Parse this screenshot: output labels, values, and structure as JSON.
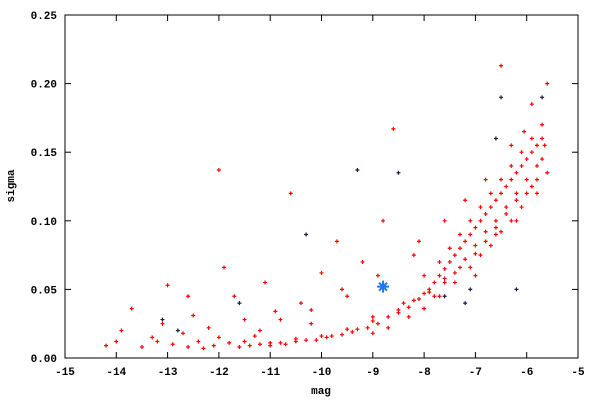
{
  "chart_data": {
    "type": "scatter",
    "title": "",
    "xlabel": "mag",
    "ylabel": "sigma",
    "xlim": [
      -15,
      -5
    ],
    "ylim": [
      0,
      0.25
    ],
    "xticks": [
      "-15",
      "-14",
      "-13",
      "-12",
      "-11",
      "-10",
      "-9",
      "-8",
      "-7",
      "-6",
      "-5"
    ],
    "yticks": [
      "0.00",
      "0.05",
      "0.10",
      "0.15",
      "0.20",
      "0.25"
    ],
    "grid": false,
    "legend": "none",
    "series": [
      {
        "color": "#ff0000",
        "marker": "plus",
        "points": [
          [
            -14.2,
            0.009
          ],
          [
            -14.0,
            0.012
          ],
          [
            -13.9,
            0.02
          ],
          [
            -13.7,
            0.036
          ],
          [
            -13.5,
            0.008
          ],
          [
            -13.3,
            0.015
          ],
          [
            -13.1,
            0.025
          ],
          [
            -13.0,
            0.053
          ],
          [
            -12.9,
            0.01
          ],
          [
            -12.7,
            0.018
          ],
          [
            -12.6,
            0.008
          ],
          [
            -12.5,
            0.031
          ],
          [
            -12.4,
            0.012
          ],
          [
            -12.3,
            0.007
          ],
          [
            -12.2,
            0.022
          ],
          [
            -12.1,
            0.009
          ],
          [
            -12.0,
            0.137
          ],
          [
            -11.9,
            0.066
          ],
          [
            -11.8,
            0.011
          ],
          [
            -11.7,
            0.045
          ],
          [
            -11.6,
            0.008
          ],
          [
            -11.5,
            0.028
          ],
          [
            -11.4,
            0.009
          ],
          [
            -11.3,
            0.016
          ],
          [
            -11.2,
            0.01
          ],
          [
            -11.1,
            0.055
          ],
          [
            -11.0,
            0.009
          ],
          [
            -10.9,
            0.034
          ],
          [
            -10.8,
            0.011
          ],
          [
            -10.7,
            0.01
          ],
          [
            -10.6,
            0.12
          ],
          [
            -10.5,
            0.012
          ],
          [
            -10.4,
            0.04
          ],
          [
            -10.3,
            0.013
          ],
          [
            -10.2,
            0.025
          ],
          [
            -10.1,
            0.013
          ],
          [
            -10.0,
            0.062
          ],
          [
            -9.9,
            0.015
          ],
          [
            -9.8,
            0.016
          ],
          [
            -9.7,
            0.085
          ],
          [
            -9.6,
            0.017
          ],
          [
            -9.5,
            0.045
          ],
          [
            -9.4,
            0.019
          ],
          [
            -9.3,
            0.021
          ],
          [
            -9.2,
            0.07
          ],
          [
            -9.1,
            0.022
          ],
          [
            -9.0,
            0.03
          ],
          [
            -8.9,
            0.025
          ],
          [
            -8.8,
            0.1
          ],
          [
            -8.7,
            0.03
          ],
          [
            -8.6,
            0.167
          ],
          [
            -8.5,
            0.033
          ],
          [
            -8.4,
            0.04
          ],
          [
            -8.3,
            0.037
          ],
          [
            -8.2,
            0.075
          ],
          [
            -8.1,
            0.043
          ],
          [
            -8.0,
            0.047
          ],
          [
            -8.0,
            0.06
          ],
          [
            -7.9,
            0.05
          ],
          [
            -7.8,
            0.055
          ],
          [
            -7.8,
            0.045
          ],
          [
            -7.7,
            0.06
          ],
          [
            -7.7,
            0.07
          ],
          [
            -7.6,
            0.065
          ],
          [
            -7.6,
            0.058
          ],
          [
            -7.5,
            0.07
          ],
          [
            -7.5,
            0.08
          ],
          [
            -7.4,
            0.075
          ],
          [
            -7.4,
            0.062
          ],
          [
            -7.3,
            0.08
          ],
          [
            -7.3,
            0.09
          ],
          [
            -7.2,
            0.085
          ],
          [
            -7.2,
            0.072
          ],
          [
            -7.1,
            0.09
          ],
          [
            -7.1,
            0.1
          ],
          [
            -7.0,
            0.095
          ],
          [
            -7.0,
            0.082
          ],
          [
            -6.9,
            0.1
          ],
          [
            -6.9,
            0.11
          ],
          [
            -6.8,
            0.105
          ],
          [
            -6.8,
            0.092
          ],
          [
            -6.7,
            0.11
          ],
          [
            -6.7,
            0.12
          ],
          [
            -6.6,
            0.115
          ],
          [
            -6.6,
            0.1
          ],
          [
            -6.5,
            0.12
          ],
          [
            -6.5,
            0.13
          ],
          [
            -6.5,
            0.213
          ],
          [
            -6.4,
            0.125
          ],
          [
            -6.4,
            0.11
          ],
          [
            -6.3,
            0.13
          ],
          [
            -6.3,
            0.14
          ],
          [
            -6.2,
            0.135
          ],
          [
            -6.2,
            0.12
          ],
          [
            -6.1,
            0.14
          ],
          [
            -6.1,
            0.15
          ],
          [
            -6.0,
            0.145
          ],
          [
            -6.0,
            0.13
          ],
          [
            -5.9,
            0.15
          ],
          [
            -5.9,
            0.16
          ],
          [
            -5.8,
            0.155
          ],
          [
            -5.8,
            0.14
          ],
          [
            -5.7,
            0.16
          ],
          [
            -5.7,
            0.17
          ],
          [
            -5.6,
            0.2
          ],
          [
            -5.6,
            0.135
          ],
          [
            -5.9,
            0.185
          ],
          [
            -6.6,
            0.09
          ],
          [
            -7.0,
            0.06
          ],
          [
            -6.2,
            0.1
          ],
          [
            -11.5,
            0.012
          ],
          [
            -11.0,
            0.011
          ],
          [
            -10.5,
            0.014
          ],
          [
            -10.0,
            0.016
          ],
          [
            -9.5,
            0.021
          ],
          [
            -9.0,
            0.027
          ],
          [
            -8.5,
            0.035
          ],
          [
            -8.2,
            0.042
          ],
          [
            -7.9,
            0.048
          ],
          [
            -7.6,
            0.055
          ],
          [
            -7.3,
            0.066
          ],
          [
            -7.0,
            0.076
          ],
          [
            -6.8,
            0.085
          ],
          [
            -6.6,
            0.095
          ],
          [
            -6.4,
            0.105
          ],
          [
            -6.2,
            0.115
          ],
          [
            -6.0,
            0.12
          ],
          [
            -5.8,
            0.13
          ],
          [
            -5.7,
            0.145
          ],
          [
            -5.65,
            0.155
          ],
          [
            -9.0,
            0.018
          ],
          [
            -8.7,
            0.022
          ],
          [
            -8.3,
            0.03
          ],
          [
            -8.0,
            0.036
          ],
          [
            -7.7,
            0.045
          ],
          [
            -7.4,
            0.055
          ],
          [
            -7.1,
            0.066
          ],
          [
            -6.9,
            0.075
          ],
          [
            -6.7,
            0.082
          ],
          [
            -6.5,
            0.092
          ],
          [
            -6.3,
            0.1
          ],
          [
            -6.1,
            0.11
          ],
          [
            -5.9,
            0.125
          ],
          [
            -5.8,
            0.12
          ],
          [
            -6.05,
            0.165
          ],
          [
            -6.3,
            0.155
          ],
          [
            -6.8,
            0.13
          ],
          [
            -7.2,
            0.115
          ],
          [
            -7.6,
            0.1
          ],
          [
            -8.1,
            0.085
          ],
          [
            -8.9,
            0.06
          ],
          [
            -9.6,
            0.05
          ],
          [
            -10.2,
            0.035
          ],
          [
            -10.8,
            0.028
          ],
          [
            -12.6,
            0.045
          ],
          [
            -13.2,
            0.012
          ],
          [
            -12.0,
            0.015
          ],
          [
            -11.2,
            0.02
          ]
        ]
      },
      {
        "color": "#1a1a40",
        "marker": "plus",
        "points": [
          [
            -13.1,
            0.028
          ],
          [
            -12.8,
            0.02
          ],
          [
            -11.6,
            0.04
          ],
          [
            -10.3,
            0.09
          ],
          [
            -9.3,
            0.137
          ],
          [
            -8.5,
            0.135
          ],
          [
            -7.2,
            0.04
          ],
          [
            -6.5,
            0.19
          ],
          [
            -6.6,
            0.16
          ],
          [
            -7.6,
            0.045
          ],
          [
            -7.1,
            0.05
          ],
          [
            -6.2,
            0.05
          ],
          [
            -5.7,
            0.19
          ]
        ]
      },
      {
        "color": "#1e78e6",
        "marker": "star",
        "points": [
          [
            -8.8,
            0.052
          ]
        ]
      }
    ]
  }
}
